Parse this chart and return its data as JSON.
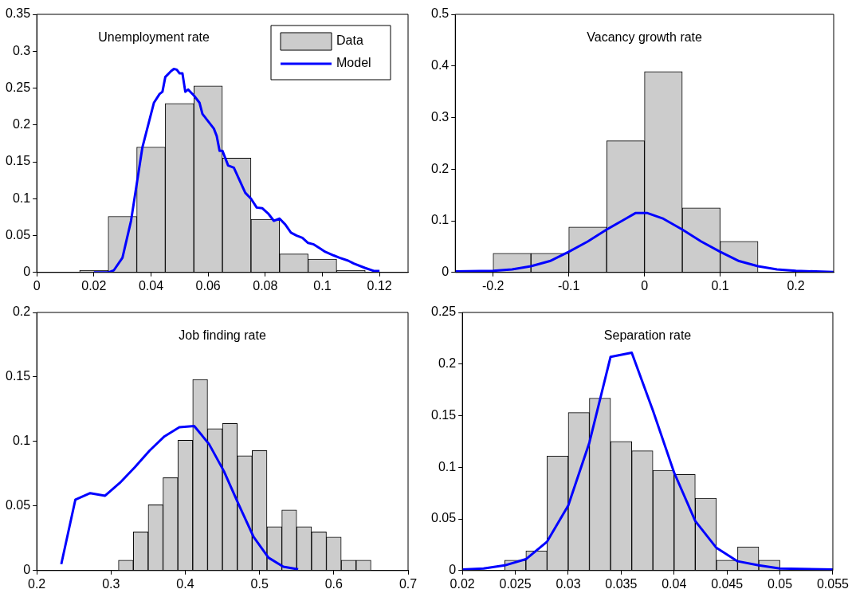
{
  "chart_data": [
    {
      "type": "histogram",
      "title": "Unemployment rate",
      "legend": "top right",
      "xlim": [
        0,
        0.13
      ],
      "xticks": [
        0,
        0.02,
        0.04,
        0.06,
        0.08,
        0.1,
        0.12
      ],
      "ylim": [
        0,
        0.35
      ],
      "yticks": [
        0,
        0.05,
        0.1,
        0.15,
        0.2,
        0.25,
        0.3,
        0.35
      ],
      "series": [
        {
          "name": "Data",
          "color": "#cccccc",
          "bins": [
            0.015,
            0.025,
            0.035,
            0.045,
            0.055,
            0.065,
            0.075,
            0.085,
            0.095,
            0.105,
            0.115
          ],
          "values": [
            0.003,
            0.076,
            0.17,
            0.229,
            0.253,
            0.155,
            0.072,
            0.025,
            0.018,
            0.003
          ]
        },
        {
          "name": "Model",
          "type": "line",
          "color": "#0000ff",
          "x": [
            0.02,
            0.025,
            0.027,
            0.03,
            0.033,
            0.035,
            0.037,
            0.039,
            0.041,
            0.043,
            0.044,
            0.045,
            0.047,
            0.048,
            0.049,
            0.05,
            0.051,
            0.052,
            0.053,
            0.055,
            0.057,
            0.058,
            0.06,
            0.062,
            0.063,
            0.064,
            0.065,
            0.067,
            0.069,
            0.071,
            0.073,
            0.075,
            0.077,
            0.079,
            0.081,
            0.083,
            0.085,
            0.087,
            0.089,
            0.091,
            0.093,
            0.095,
            0.097,
            0.099,
            0.101,
            0.104,
            0.106,
            0.109,
            0.111,
            0.115,
            0.118,
            0.12
          ],
          "values": [
            0,
            0,
            0.003,
            0.02,
            0.07,
            0.12,
            0.17,
            0.2,
            0.23,
            0.242,
            0.245,
            0.265,
            0.273,
            0.276,
            0.275,
            0.27,
            0.27,
            0.245,
            0.248,
            0.24,
            0.23,
            0.215,
            0.205,
            0.195,
            0.185,
            0.165,
            0.165,
            0.145,
            0.142,
            0.125,
            0.108,
            0.1,
            0.088,
            0.087,
            0.08,
            0.07,
            0.073,
            0.065,
            0.054,
            0.05,
            0.047,
            0.04,
            0.038,
            0.033,
            0.028,
            0.023,
            0.02,
            0.016,
            0.012,
            0.006,
            0.002,
            0.002
          ]
        }
      ]
    },
    {
      "type": "histogram",
      "title": "Vacancy growth rate",
      "xlim": [
        -0.25,
        0.25
      ],
      "xticks": [
        -0.2,
        -0.1,
        0,
        0.1,
        0.2
      ],
      "ylim": [
        0,
        0.5
      ],
      "yticks": [
        0,
        0.1,
        0.2,
        0.3,
        0.4,
        0.5
      ],
      "series": [
        {
          "color": "#cccccc",
          "bins": [
            -0.2,
            -0.15,
            -0.1,
            -0.05,
            0,
            0.05,
            0.1,
            0.15
          ],
          "values": [
            0.037,
            0.037,
            0.088,
            0.255,
            0.389,
            0.125,
            0.06
          ]
        },
        {
          "type": "line",
          "color": "#0000ff",
          "x": [
            -0.25,
            -0.2,
            -0.175,
            -0.15,
            -0.125,
            -0.1,
            -0.075,
            -0.05,
            -0.025,
            -0.012,
            0.004,
            0.025,
            0.05,
            0.075,
            0.1,
            0.125,
            0.15,
            0.175,
            0.2,
            0.25
          ],
          "values": [
            0.002,
            0.003,
            0.006,
            0.012,
            0.022,
            0.04,
            0.06,
            0.083,
            0.104,
            0.115,
            0.115,
            0.104,
            0.083,
            0.06,
            0.04,
            0.022,
            0.012,
            0.006,
            0.003,
            0.001
          ]
        }
      ]
    },
    {
      "type": "histogram",
      "title": "Job finding rate",
      "xlim": [
        0.2,
        0.7
      ],
      "xticks": [
        0.2,
        0.3,
        0.4,
        0.5,
        0.6,
        0.7
      ],
      "ylim": [
        0,
        0.2
      ],
      "yticks": [
        0,
        0.05,
        0.1,
        0.15,
        0.2
      ],
      "series": [
        {
          "color": "#cccccc",
          "bins": [
            0.31,
            0.33,
            0.35,
            0.37,
            0.39,
            0.41,
            0.43,
            0.45,
            0.47,
            0.49,
            0.51,
            0.53,
            0.55,
            0.57,
            0.59,
            0.61,
            0.63,
            0.65
          ],
          "values": [
            0.008,
            0.03,
            0.051,
            0.072,
            0.101,
            0.148,
            0.11,
            0.114,
            0.089,
            0.093,
            0.034,
            0.047,
            0.034,
            0.03,
            0.026,
            0.008,
            0.008
          ]
        },
        {
          "type": "line",
          "color": "#0000ff",
          "x": [
            0.233,
            0.252,
            0.272,
            0.292,
            0.312,
            0.332,
            0.352,
            0.372,
            0.392,
            0.412,
            0.432,
            0.452,
            0.472,
            0.492,
            0.512,
            0.532,
            0.552
          ],
          "values": [
            0.005,
            0.055,
            0.06,
            0.058,
            0.068,
            0.08,
            0.093,
            0.104,
            0.111,
            0.112,
            0.098,
            0.077,
            0.051,
            0.026,
            0.01,
            0.003,
            0.001
          ]
        }
      ]
    },
    {
      "type": "histogram",
      "title": "Separation rate",
      "xlim": [
        0.02,
        0.055
      ],
      "xticks": [
        0.02,
        0.025,
        0.03,
        0.035,
        0.04,
        0.045,
        0.05,
        0.055
      ],
      "ylim": [
        0,
        0.25
      ],
      "yticks": [
        0,
        0.05,
        0.1,
        0.15,
        0.2,
        0.25
      ],
      "series": [
        {
          "color": "#cccccc",
          "bins": [
            0.024,
            0.026,
            0.028,
            0.03,
            0.032,
            0.034,
            0.036,
            0.038,
            0.04,
            0.042,
            0.044,
            0.046,
            0.048,
            0.05
          ],
          "values": [
            0.01,
            0.019,
            0.111,
            0.153,
            0.167,
            0.125,
            0.116,
            0.097,
            0.093,
            0.07,
            0.01,
            0.023,
            0.01
          ]
        },
        {
          "type": "line",
          "color": "#0000ff",
          "x": [
            0.02,
            0.022,
            0.024,
            0.026,
            0.028,
            0.03,
            0.032,
            0.034,
            0.036,
            0.038,
            0.04,
            0.042,
            0.044,
            0.046,
            0.048,
            0.05,
            0.055
          ],
          "values": [
            0.001,
            0.002,
            0.005,
            0.011,
            0.028,
            0.063,
            0.124,
            0.207,
            0.211,
            0.155,
            0.095,
            0.048,
            0.022,
            0.009,
            0.005,
            0.002,
            0.001
          ]
        }
      ]
    }
  ]
}
